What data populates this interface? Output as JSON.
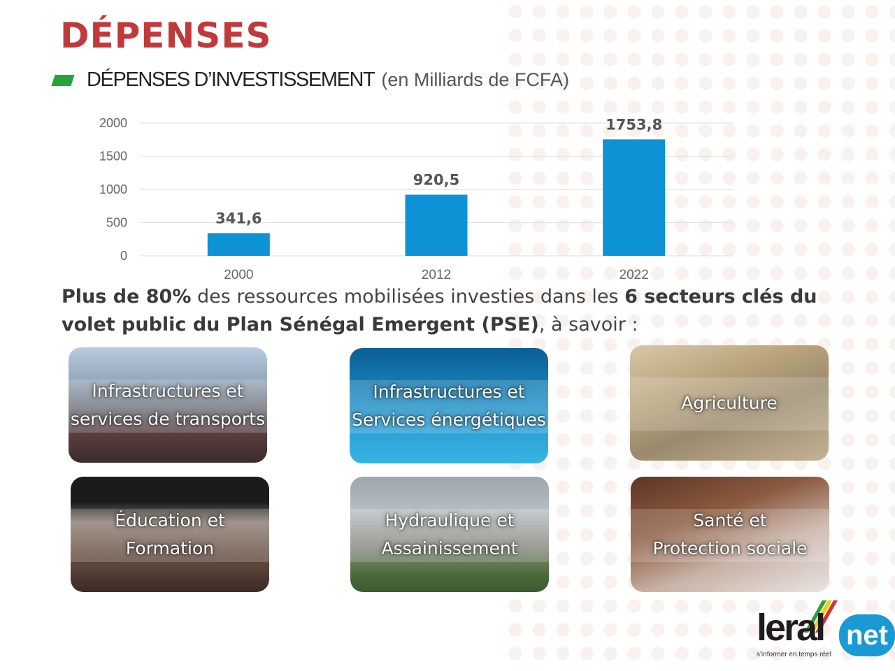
{
  "page": {
    "title": "DÉPENSES",
    "subtitle": "DÉPENSES D’INVESTISSEMENT",
    "subtitle_unit": "(en Milliards de FCFA)"
  },
  "chart_data": {
    "type": "bar",
    "categories": [
      "2000",
      "2012",
      "2022"
    ],
    "values": [
      341.6,
      920.5,
      1753.8
    ],
    "data_labels": [
      "341,6",
      "920,5",
      "1753,8"
    ],
    "yticks": [
      0,
      500,
      1000,
      1500,
      2000
    ],
    "ylim": [
      0,
      2000
    ],
    "grid": true,
    "bar_color": "#0d92d6",
    "title": "",
    "xlabel": "",
    "ylabel": ""
  },
  "intro": {
    "part1_bold": "Plus de 80%",
    "part2": " des ressources mobilisées investies dans les ",
    "part3_bold": "6 secteurs clés du volet public du Plan Sénégal Emergent (PSE)",
    "part4": ", à savoir :"
  },
  "sectors": [
    {
      "line1": "Infrastructures et",
      "line2": "services de transports"
    },
    {
      "line1": "Infrastructures et",
      "line2": "Services énergétiques"
    },
    {
      "line1": "Agriculture",
      "line2": ""
    },
    {
      "line1": "Éducation et",
      "line2": "Formation"
    },
    {
      "line1": "Hydraulique et",
      "line2": "Assainissement"
    },
    {
      "line1": "Santé et",
      "line2": "Protection sociale"
    }
  ],
  "logo": {
    "text": "leral",
    "badge": "net",
    "tagline": "s'informer en temps réel"
  },
  "colors": {
    "title": "#c0393b",
    "accent_green": "#27a33c",
    "bar": "#0d92d6"
  }
}
